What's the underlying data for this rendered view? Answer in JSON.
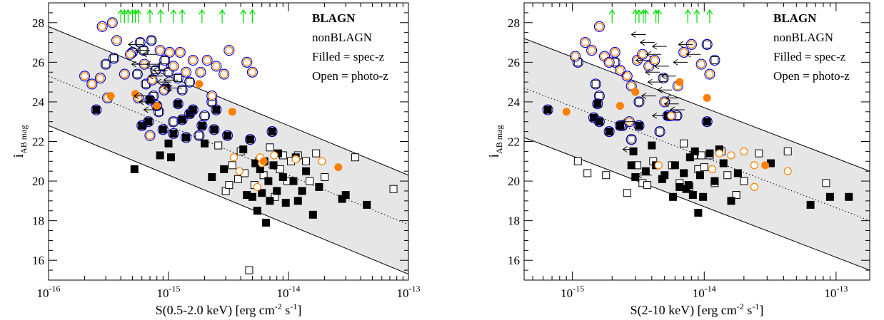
{
  "colors": {
    "blagn": "#000000",
    "nonblagn": "#ff8000",
    "ring": "#0000cc",
    "arrow_up": "#00dd00",
    "band": "#e6e6e6"
  },
  "chart_data": [
    {
      "type": "scatter",
      "xscale": "log",
      "xlim": [
        1e-16,
        1e-13
      ],
      "ylim": [
        15,
        29
      ],
      "xticks": [
        {
          "v": 1e-16,
          "base": "10",
          "exp": "-16"
        },
        {
          "v": 1e-15,
          "base": "10",
          "exp": "-15"
        },
        {
          "v": 1e-14,
          "base": "10",
          "exp": "-14"
        },
        {
          "v": 1e-13,
          "base": "10",
          "exp": "-13"
        }
      ],
      "yticks": [
        "16",
        "18",
        "20",
        "22",
        "24",
        "26",
        "28"
      ],
      "xlabel": "S(0.5-2.0 keV) [erg cm",
      "xlabel_sup1": "-2",
      "xlabel_mid": " s",
      "xlabel_sup2": "-1",
      "xlabel_end": "]",
      "ylabel": "i",
      "ylabel_sub": "AB mag",
      "legend": [
        "BLAGN",
        "nonBLAGN",
        "Filled = spec-z",
        "Open = photo-z"
      ],
      "band": {
        "upper": [
          [
            1e-16,
            27.8
          ],
          [
            1e-13,
            20.3
          ]
        ],
        "middle": [
          [
            1e-16,
            25.3
          ],
          [
            1e-13,
            17.8
          ]
        ],
        "lower": [
          [
            1e-16,
            22.8
          ],
          [
            1e-13,
            15.3
          ]
        ]
      },
      "blagn_spec": [
        [
          2.5e-16,
          23.6
        ],
        [
          5.2e-16,
          20.6
        ],
        [
          6e-16,
          22.8
        ],
        [
          6.8e-16,
          23.0
        ],
        [
          7e-16,
          24.1
        ],
        [
          8e-16,
          23.8
        ],
        [
          8.5e-16,
          21.3
        ],
        [
          9e-16,
          22.6
        ],
        [
          9.5e-16,
          24.7
        ],
        [
          1e-15,
          21.9
        ],
        [
          1.05e-15,
          21.2
        ],
        [
          1.1e-15,
          22.4
        ],
        [
          1.2e-15,
          23.9
        ],
        [
          1.3e-15,
          23.1
        ],
        [
          1.4e-15,
          22.2
        ],
        [
          1.5e-15,
          23.4
        ],
        [
          1.6e-15,
          23.6
        ],
        [
          1.9e-15,
          22.8
        ],
        [
          2e-15,
          21.9
        ],
        [
          2.3e-15,
          20.2
        ],
        [
          2.4e-15,
          22.6
        ],
        [
          2.5e-15,
          23.6
        ],
        [
          2.9e-15,
          20.6
        ],
        [
          3.1e-15,
          22.3
        ],
        [
          4.2e-15,
          21.6
        ],
        [
          4.8e-15,
          22.1
        ],
        [
          5e-15,
          19.2
        ],
        [
          5.5e-15,
          18.5
        ],
        [
          5.8e-15,
          20.6
        ],
        [
          6e-15,
          19.4
        ],
        [
          6.3e-15,
          21.0
        ],
        [
          6.5e-15,
          17.9
        ],
        [
          7e-15,
          19.0
        ],
        [
          7.3e-15,
          22.5
        ],
        [
          7.5e-15,
          20.8
        ],
        [
          8e-15,
          19.5
        ],
        [
          8.2e-15,
          21.4
        ],
        [
          9e-15,
          20.2
        ],
        [
          9.5e-15,
          18.9
        ],
        [
          1.1e-14,
          20.0
        ],
        [
          1.2e-14,
          19.0
        ],
        [
          1.3e-14,
          19.5
        ],
        [
          1.4e-14,
          20.5
        ],
        [
          1.6e-14,
          18.3
        ],
        [
          1.8e-14,
          19.7
        ],
        [
          2.8e-14,
          19.1
        ],
        [
          3e-14,
          19.3
        ],
        [
          4.5e-14,
          18.8
        ],
        [
          5.3e-15,
          20.9
        ],
        [
          4.5e-15,
          19.3
        ],
        [
          6.8e-15,
          20.0
        ],
        [
          1.15e-14,
          21.2
        ]
      ],
      "blagn_photo": [
        [
          3e-16,
          25.9
        ],
        [
          3.5e-16,
          26.2
        ],
        [
          5e-16,
          26.5
        ],
        [
          5.5e-16,
          25.4
        ],
        [
          5.8e-16,
          27.0
        ],
        [
          6.2e-16,
          26.6
        ],
        [
          6.5e-16,
          24.9
        ],
        [
          7.2e-16,
          27.1
        ],
        [
          7.5e-16,
          24.3
        ],
        [
          7.8e-16,
          25.6
        ],
        [
          8.3e-16,
          23.5
        ],
        [
          9e-16,
          25.8
        ],
        [
          9.3e-16,
          26.1
        ],
        [
          1e-15,
          25.5
        ],
        [
          1.1e-15,
          23.0
        ],
        [
          1.2e-15,
          25.2
        ],
        [
          1.3e-15,
          24.6
        ],
        [
          1.5e-15,
          25.0
        ],
        [
          1.8e-15,
          22.3
        ],
        [
          2e-15,
          23.3
        ],
        [
          2.3e-15,
          24.0
        ],
        [
          2.6e-15,
          21.8
        ],
        [
          3e-15,
          19.5
        ],
        [
          3.4e-15,
          20.8
        ],
        [
          3.8e-15,
          20.1
        ],
        [
          4e-15,
          21.5
        ],
        [
          4.3e-15,
          20.4
        ],
        [
          4.7e-15,
          15.5
        ],
        [
          5.2e-15,
          19.8
        ],
        [
          5.7e-15,
          21.0
        ],
        [
          6.2e-15,
          20.3
        ],
        [
          7e-15,
          21.7
        ],
        [
          7.7e-15,
          19.2
        ],
        [
          8.5e-15,
          20.6
        ],
        [
          9e-15,
          21.3
        ],
        [
          9.8e-15,
          20.0
        ],
        [
          1.05e-14,
          21.0
        ],
        [
          1.2e-14,
          21.3
        ],
        [
          1.4e-14,
          21.0
        ],
        [
          1.5e-14,
          20.0
        ],
        [
          1.7e-14,
          21.4
        ],
        [
          2e-14,
          20.2
        ],
        [
          3.6e-14,
          21.2
        ],
        [
          7.5e-14,
          19.6
        ],
        [
          3.2e-15,
          19.8
        ]
      ],
      "nonblagn_spec": [
        [
          3.3e-16,
          24.3
        ],
        [
          5.3e-16,
          24.4
        ],
        [
          8e-16,
          23.8
        ],
        [
          1.8e-15,
          24.9
        ],
        [
          3.4e-15,
          23.5
        ],
        [
          6.2e-15,
          21.0
        ],
        [
          2.6e-14,
          20.7
        ]
      ],
      "nonblagn_photo": [
        [
          2e-16,
          25.3
        ],
        [
          2.3e-16,
          24.9
        ],
        [
          2.7e-16,
          25.2
        ],
        [
          3.1e-16,
          24.2
        ],
        [
          3.7e-16,
          27.1
        ],
        [
          4.3e-16,
          25.4
        ],
        [
          2.8e-16,
          27.8
        ],
        [
          3.4e-16,
          28.0
        ],
        [
          4.8e-16,
          26.4
        ],
        [
          5.6e-16,
          24.2
        ],
        [
          6.3e-16,
          25.9
        ],
        [
          7e-16,
          22.3
        ],
        [
          7.3e-16,
          25.1
        ],
        [
          8.5e-16,
          26.6
        ],
        [
          9.2e-16,
          24.6
        ],
        [
          1.02e-15,
          26.5
        ],
        [
          1.1e-15,
          25.8
        ],
        [
          1.25e-15,
          26.5
        ],
        [
          1.4e-15,
          25.5
        ],
        [
          1.6e-15,
          26.1
        ],
        [
          1.85e-15,
          25.5
        ],
        [
          2.1e-15,
          26.1
        ],
        [
          2.5e-15,
          25.8
        ],
        [
          2.9e-15,
          25.4
        ],
        [
          3.2e-15,
          26.6
        ],
        [
          3.5e-15,
          21.2
        ],
        [
          3.9e-15,
          20.5
        ],
        [
          4.5e-15,
          26.0
        ],
        [
          5e-15,
          25.5
        ],
        [
          5.5e-15,
          19.7
        ],
        [
          6e-15,
          20.9
        ],
        [
          7.6e-15,
          21.3
        ],
        [
          1.15e-14,
          21.1
        ],
        [
          1.9e-14,
          21.0
        ],
        [
          5.8e-15,
          21.2
        ],
        [
          2.3e-15,
          24.3
        ]
      ],
      "upper_limits_x": [
        4e-16,
        4.3e-16,
        4.6e-16,
        5e-16,
        5.3e-16,
        5.6e-16,
        7e-16,
        8.6e-16,
        1.1e-15,
        1.3e-15,
        1.9e-15,
        2.8e-15,
        4.2e-15,
        5e-15
      ],
      "left_arrows": [
        [
          6.1e-16,
          26.9
        ],
        [
          7e-16,
          26.6
        ],
        [
          8e-16,
          26.4
        ],
        [
          8.6e-16,
          25.9
        ],
        [
          9.8e-16,
          25.6
        ],
        [
          9e-16,
          25.3
        ],
        [
          1.05e-15,
          25.0
        ],
        [
          1.2e-15,
          24.7
        ],
        [
          6.8e-16,
          24.3
        ],
        [
          7.5e-16,
          24.0
        ],
        [
          8.2e-16,
          23.6
        ],
        [
          1.3e-15,
          24.7
        ],
        [
          6.5e-16,
          25.9
        ],
        [
          1.2e-15,
          25.1
        ]
      ]
    },
    {
      "type": "scatter",
      "xscale": "log",
      "xlim": [
        4.3e-16,
        1.8e-13
      ],
      "ylim": [
        15,
        29
      ],
      "xticks": [
        {
          "v": 1e-15,
          "base": "10",
          "exp": "-15"
        },
        {
          "v": 1e-14,
          "base": "10",
          "exp": "-14"
        },
        {
          "v": 1e-13,
          "base": "10",
          "exp": "-13"
        }
      ],
      "yticks": [
        "16",
        "18",
        "20",
        "22",
        "24",
        "26",
        "28"
      ],
      "xlabel": "S(2-10 keV) [erg cm",
      "xlabel_sup1": "-2",
      "xlabel_mid": " s",
      "xlabel_sup2": "-1",
      "xlabel_end": "]",
      "ylabel": "i",
      "ylabel_sub": "AB mag",
      "legend": [
        "BLAGN",
        "nonBLAGN",
        "Filled = spec-z",
        "Open = photo-z"
      ],
      "band": {
        "upper": [
          [
            4.3e-16,
            27.2
          ],
          [
            1.8e-13,
            20.5
          ]
        ],
        "middle": [
          [
            4.3e-16,
            24.7
          ],
          [
            1.8e-13,
            18.0
          ]
        ],
        "lower": [
          [
            4.3e-16,
            22.2
          ],
          [
            1.8e-13,
            15.5
          ]
        ]
      },
      "blagn_spec": [
        [
          6.5e-16,
          23.6
        ],
        [
          1.45e-15,
          23.2
        ],
        [
          1.55e-15,
          23.9
        ],
        [
          1.6e-15,
          23.0
        ],
        [
          1.9e-15,
          22.5
        ],
        [
          2.3e-15,
          22.8
        ],
        [
          2.8e-15,
          20.8
        ],
        [
          3e-15,
          20.2
        ],
        [
          3.2e-15,
          22.8
        ],
        [
          3.6e-15,
          20.5
        ],
        [
          4e-15,
          21.8
        ],
        [
          4.3e-15,
          20.8
        ],
        [
          4.8e-15,
          20.1
        ],
        [
          5.3e-15,
          23.3
        ],
        [
          5.8e-15,
          19.2
        ],
        [
          6e-15,
          20.8
        ],
        [
          6.5e-15,
          19.7
        ],
        [
          7e-15,
          20.4
        ],
        [
          7.3e-15,
          19.6
        ],
        [
          7.8e-15,
          21.2
        ],
        [
          8.2e-15,
          19.3
        ],
        [
          8.5e-15,
          21.5
        ],
        [
          9e-15,
          18.4
        ],
        [
          9.3e-15,
          20.3
        ],
        [
          9.8e-15,
          19.2
        ],
        [
          1.05e-14,
          23.0
        ],
        [
          1.1e-14,
          21.4
        ],
        [
          1.2e-14,
          20.0
        ],
        [
          1.3e-14,
          21.6
        ],
        [
          1.4e-14,
          20.9
        ],
        [
          1.6e-14,
          19.0
        ],
        [
          1.8e-14,
          20.4
        ],
        [
          3.2e-14,
          20.9
        ],
        [
          6.4e-14,
          18.8
        ],
        [
          9e-14,
          19.2
        ],
        [
          1.25e-13,
          19.2
        ],
        [
          2.9e-15,
          21.5
        ],
        [
          5e-15,
          20.3
        ],
        [
          7.6e-15,
          19.8
        ]
      ],
      "blagn_photo": [
        [
          1.1e-15,
          26.0
        ],
        [
          1.5e-15,
          24.9
        ],
        [
          1.6e-15,
          24.3
        ],
        [
          2.1e-15,
          26.0
        ],
        [
          2.4e-15,
          22.8
        ],
        [
          2.8e-15,
          22.1
        ],
        [
          3.1e-15,
          20.8
        ],
        [
          3.4e-15,
          19.9
        ],
        [
          3.7e-15,
          19.8
        ],
        [
          4.1e-15,
          21.0
        ],
        [
          4.6e-15,
          22.5
        ],
        [
          4.9e-15,
          25.2
        ],
        [
          5.3e-15,
          23.3
        ],
        [
          5.7e-15,
          20.8
        ],
        [
          6.2e-15,
          23.3
        ],
        [
          6.5e-15,
          19.9
        ],
        [
          7e-15,
          21.9
        ],
        [
          7.7e-15,
          19.7
        ],
        [
          8.3e-15,
          21.3
        ],
        [
          9e-15,
          20.6
        ],
        [
          9.5e-15,
          21.3
        ],
        [
          1e-14,
          20.7
        ],
        [
          1.1e-14,
          21.3
        ],
        [
          1.2e-14,
          19.9
        ],
        [
          1.35e-14,
          21.5
        ],
        [
          1.5e-14,
          20.3
        ],
        [
          1.75e-14,
          19.3
        ],
        [
          2e-14,
          20.0
        ],
        [
          2.6e-14,
          21.4
        ],
        [
          4.3e-14,
          21.5
        ],
        [
          8.4e-14,
          19.9
        ],
        [
          1.1e-15,
          21.0
        ],
        [
          1.3e-15,
          20.4
        ],
        [
          1.8e-15,
          20.3
        ],
        [
          2.6e-15,
          19.4
        ],
        [
          3.2e-15,
          24.0
        ],
        [
          1.05e-14,
          26.9
        ],
        [
          1.2e-14,
          26.1
        ]
      ],
      "nonblagn_spec": [
        [
          9e-16,
          23.5
        ],
        [
          2.3e-15,
          23.8
        ],
        [
          3e-15,
          24.5
        ],
        [
          6.5e-15,
          25.0
        ],
        [
          1.05e-14,
          24.2
        ],
        [
          2.9e-14,
          20.8
        ]
      ],
      "nonblagn_photo": [
        [
          1.05e-15,
          26.3
        ],
        [
          1.25e-15,
          27.0
        ],
        [
          1.4e-15,
          26.6
        ],
        [
          1.6e-15,
          27.8
        ],
        [
          1.75e-15,
          26.3
        ],
        [
          1.9e-15,
          26.0
        ],
        [
          2.1e-15,
          26.5
        ],
        [
          2.3e-15,
          25.6
        ],
        [
          2.6e-15,
          25.3
        ],
        [
          2.8e-15,
          24.8
        ],
        [
          3.1e-15,
          26.1
        ],
        [
          3.4e-15,
          26.4
        ],
        [
          3.8e-15,
          25.8
        ],
        [
          4.2e-15,
          26.1
        ],
        [
          4.5e-15,
          20.8
        ],
        [
          5e-15,
          24.0
        ],
        [
          5.6e-15,
          23.3
        ],
        [
          6.3e-15,
          24.8
        ],
        [
          7e-15,
          26.5
        ],
        [
          8e-15,
          26.9
        ],
        [
          9.5e-15,
          25.9
        ],
        [
          1.1e-14,
          25.4
        ],
        [
          1.3e-14,
          21.4
        ],
        [
          1.6e-14,
          21.3
        ],
        [
          2e-14,
          21.5
        ],
        [
          2.4e-14,
          19.7
        ],
        [
          2.4e-14,
          20.8
        ],
        [
          4.3e-14,
          20.5
        ],
        [
          1.15e-14,
          20.6
        ],
        [
          2.7e-15,
          23.0
        ]
      ],
      "upper_limits_x": [
        2e-15,
        3e-15,
        3.2e-15,
        3.45e-15,
        3.6e-15,
        4.3e-15,
        4.5e-15,
        7.5e-15,
        8.8e-15,
        1.1e-14
      ],
      "left_arrows": [
        [
          3.6e-15,
          27.4
        ],
        [
          4.2e-15,
          27.0
        ],
        [
          5.2e-15,
          26.8
        ],
        [
          4.7e-15,
          26.4
        ],
        [
          3.9e-15,
          26.1
        ],
        [
          5.4e-15,
          25.8
        ],
        [
          4.6e-15,
          25.5
        ],
        [
          6.1e-15,
          25.3
        ],
        [
          4.8e-15,
          25.0
        ],
        [
          5.7e-15,
          24.6
        ],
        [
          6.6e-15,
          24.2
        ],
        [
          8.2e-15,
          26.9
        ],
        [
          9.4e-15,
          26.4
        ],
        [
          7.5e-15,
          26.0
        ],
        [
          6.4e-15,
          23.9
        ],
        [
          7.1e-15,
          23.6
        ],
        [
          5.2e-15,
          23.3
        ],
        [
          4e-15,
          20.3
        ],
        [
          3.1e-15,
          21.6
        ],
        [
          4.3e-15,
          24.3
        ],
        [
          3e-15,
          23.0
        ]
      ]
    }
  ]
}
